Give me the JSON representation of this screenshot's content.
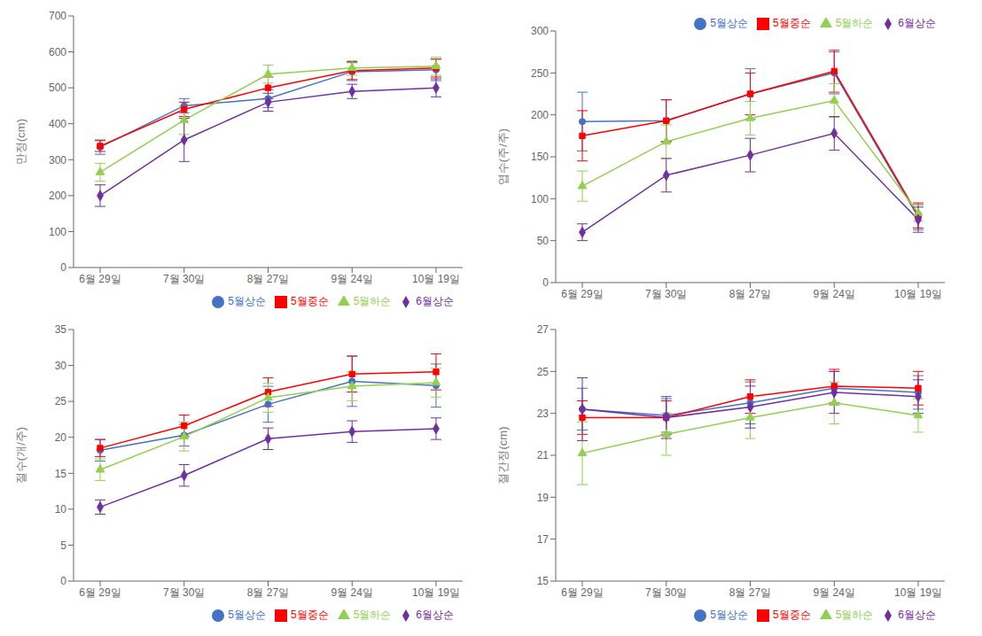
{
  "chart_data": [
    {
      "type": "line",
      "ylabel": "만정(cm)",
      "categories": [
        "6월 29일",
        "7월 30일",
        "8월 27일",
        "9월 24일",
        "10월 19일"
      ],
      "ylim": [
        0,
        700
      ],
      "yticks": [
        0,
        100,
        200,
        300,
        400,
        500,
        600,
        700
      ],
      "grid": false,
      "legend": "lower right",
      "series": [
        {
          "name": "5월상순",
          "color": "#4472C4",
          "marker": "circle",
          "values": [
            335,
            450,
            470,
            545,
            550
          ],
          "errors": [
            20,
            20,
            25,
            25,
            30
          ]
        },
        {
          "name": "5월중순",
          "color": "#FF0000",
          "marker": "square",
          "values": [
            338,
            440,
            500,
            548,
            555
          ],
          "errors": [
            15,
            20,
            30,
            25,
            25
          ]
        },
        {
          "name": "5월하순",
          "color": "#92D050",
          "marker": "triangle",
          "values": [
            265,
            410,
            538,
            555,
            560
          ],
          "errors": [
            25,
            40,
            25,
            20,
            25
          ]
        },
        {
          "name": "6월상순",
          "color": "#7030A0",
          "marker": "diamond",
          "values": [
            200,
            355,
            460,
            490,
            500
          ],
          "errors": [
            30,
            60,
            25,
            20,
            25
          ]
        }
      ]
    },
    {
      "type": "line",
      "ylabel": "엽수(주/주)",
      "categories": [
        "6월 29일",
        "7월 30일",
        "8월 27일",
        "9월 24일",
        "10월 19일"
      ],
      "ylim": [
        0,
        300
      ],
      "yticks": [
        0,
        50,
        100,
        150,
        200,
        250,
        300
      ],
      "grid": false,
      "legend": "upper right",
      "series": [
        {
          "name": "5월상순",
          "color": "#4472C4",
          "marker": "circle",
          "values": [
            192,
            193,
            225,
            250,
            78
          ],
          "errors": [
            35,
            25,
            30,
            25,
            15
          ]
        },
        {
          "name": "5월중순",
          "color": "#FF0000",
          "marker": "square",
          "values": [
            175,
            193,
            225,
            252,
            80
          ],
          "errors": [
            30,
            25,
            25,
            25,
            15
          ]
        },
        {
          "name": "5월하순",
          "color": "#92D050",
          "marker": "triangle",
          "values": [
            115,
            168,
            196,
            217,
            83
          ],
          "errors": [
            18,
            20,
            20,
            20,
            10
          ]
        },
        {
          "name": "6월상순",
          "color": "#7030A0",
          "marker": "diamond",
          "values": [
            60,
            128,
            152,
            178,
            75
          ],
          "errors": [
            10,
            20,
            20,
            20,
            15
          ]
        }
      ]
    },
    {
      "type": "line",
      "ylabel": "절수(개/주)",
      "categories": [
        "6월 29일",
        "7월 30일",
        "8월 27일",
        "9월 24일",
        "10월 19일"
      ],
      "ylim": [
        0,
        35
      ],
      "yticks": [
        0,
        5,
        10,
        15,
        20,
        25,
        30,
        35
      ],
      "grid": false,
      "legend": "lower right",
      "series": [
        {
          "name": "5월상순",
          "color": "#4472C4",
          "marker": "circle",
          "values": [
            18.2,
            20.3,
            24.6,
            27.8,
            27.2
          ],
          "errors": [
            1.5,
            1.5,
            2.5,
            3.5,
            3.0
          ]
        },
        {
          "name": "5월중순",
          "color": "#FF0000",
          "marker": "square",
          "values": [
            18.5,
            21.6,
            26.3,
            28.8,
            29.1
          ],
          "errors": [
            1.2,
            1.5,
            2.0,
            2.5,
            2.5
          ]
        },
        {
          "name": "5월하순",
          "color": "#92D050",
          "marker": "triangle",
          "values": [
            15.5,
            20.1,
            25.5,
            27.1,
            27.6
          ],
          "errors": [
            1.5,
            2.0,
            2.0,
            2.0,
            2.0
          ]
        },
        {
          "name": "6월상순",
          "color": "#7030A0",
          "marker": "diamond",
          "values": [
            10.3,
            14.7,
            19.8,
            20.8,
            21.2
          ],
          "errors": [
            1.0,
            1.5,
            1.5,
            1.5,
            1.5
          ]
        }
      ]
    },
    {
      "type": "line",
      "ylabel": "절간정(cm)",
      "categories": [
        "6월 29일",
        "7월 30일",
        "8월 27일",
        "9월 24일",
        "10월 19일"
      ],
      "ylim": [
        15,
        27
      ],
      "yticks": [
        15,
        17,
        19,
        21,
        23,
        25,
        27
      ],
      "grid": false,
      "legend": "lower right",
      "series": [
        {
          "name": "5월상순",
          "color": "#4472C4",
          "marker": "circle",
          "values": [
            23.2,
            22.9,
            23.5,
            24.2,
            24.0
          ],
          "errors": [
            1.0,
            0.8,
            1.0,
            0.8,
            0.8
          ]
        },
        {
          "name": "5월중순",
          "color": "#FF0000",
          "marker": "square",
          "values": [
            22.8,
            22.8,
            23.8,
            24.3,
            24.2
          ],
          "errors": [
            0.8,
            0.8,
            0.8,
            0.8,
            0.8
          ]
        },
        {
          "name": "5월하순",
          "color": "#92D050",
          "marker": "triangle",
          "values": [
            21.1,
            22.0,
            22.8,
            23.5,
            22.9
          ],
          "errors": [
            1.5,
            1.0,
            1.0,
            1.0,
            0.8
          ]
        },
        {
          "name": "6월상순",
          "color": "#7030A0",
          "marker": "diamond",
          "values": [
            23.2,
            22.8,
            23.3,
            24.0,
            23.8
          ],
          "errors": [
            1.5,
            1.0,
            1.0,
            1.0,
            0.8
          ]
        }
      ]
    }
  ]
}
